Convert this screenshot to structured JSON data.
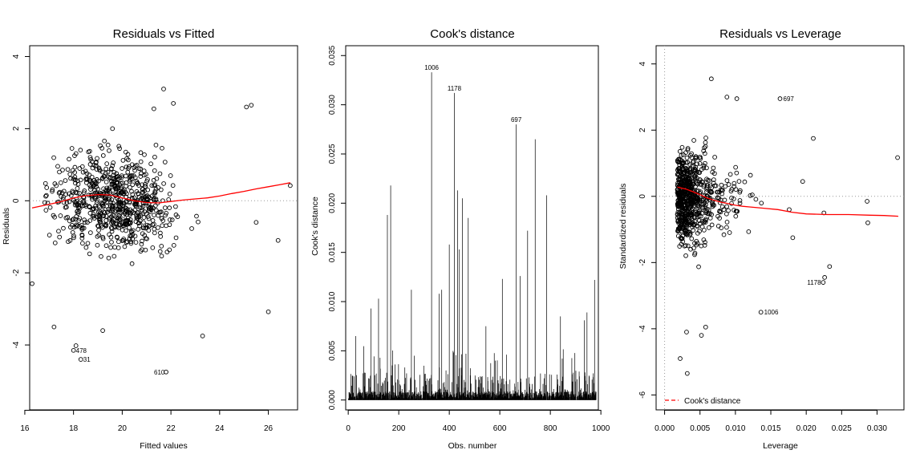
{
  "chart_data": [
    {
      "type": "scatter",
      "title": "Residuals vs Fitted",
      "xlabel": "Fitted values",
      "ylabel": "Residuals",
      "xlim": [
        16.2,
        27.2
      ],
      "ylim": [
        -5.8,
        4.3
      ],
      "x_ticks": [
        16,
        18,
        20,
        22,
        24,
        26
      ],
      "y_ticks": [
        -4,
        -2,
        0,
        2,
        4
      ],
      "reference_line": 0,
      "smooth_color": "#ff0000",
      "smooth": {
        "x": [
          16.3,
          17.0,
          17.5,
          18.0,
          18.5,
          19.0,
          19.5,
          20.0,
          20.5,
          21.0,
          21.5,
          22.0,
          22.5,
          23.0,
          23.5,
          24.0,
          24.5,
          25.0,
          25.5,
          26.0,
          26.5,
          26.9
        ],
        "y": [
          -0.2,
          -0.1,
          -0.02,
          0.08,
          0.14,
          0.17,
          0.16,
          0.08,
          0.0,
          -0.05,
          -0.06,
          -0.02,
          0.02,
          0.05,
          0.08,
          0.13,
          0.2,
          0.26,
          0.33,
          0.39,
          0.45,
          0.5
        ]
      },
      "labeled_points": [
        {
          "label": "478",
          "x": 18.0,
          "y": -4.15
        },
        {
          "label": "31",
          "x": 18.3,
          "y": -4.4
        },
        {
          "label": "610",
          "x": 21.8,
          "y": -4.75
        }
      ],
      "extra_points": [
        {
          "x": 18.1,
          "y": -4.02
        },
        {
          "x": 17.2,
          "y": -3.5
        },
        {
          "x": 19.2,
          "y": -3.6
        },
        {
          "x": 23.3,
          "y": -3.75
        },
        {
          "x": 21.7,
          "y": 3.1
        },
        {
          "x": 25.1,
          "y": 2.6
        },
        {
          "x": 25.3,
          "y": 2.65
        },
        {
          "x": 26.0,
          "y": -3.08
        },
        {
          "x": 26.9,
          "y": 0.42
        },
        {
          "x": 16.3,
          "y": -2.3
        },
        {
          "x": 22.1,
          "y": 2.7
        },
        {
          "x": 21.3,
          "y": 2.55
        },
        {
          "x": 19.6,
          "y": 2.0
        },
        {
          "x": 26.4,
          "y": -1.1
        },
        {
          "x": 25.5,
          "y": -0.6
        }
      ]
    },
    {
      "type": "bar",
      "title": "Cook's distance",
      "xlabel": "Obs. number",
      "ylabel": "Cook's distance",
      "xlim": [
        -10,
        990
      ],
      "ylim": [
        -0.001,
        0.036
      ],
      "x_ticks": [
        0,
        200,
        400,
        600,
        800,
        1000
      ],
      "y_ticks": [
        0.0,
        0.005,
        0.01,
        0.015,
        0.02,
        0.025,
        0.03,
        0.035
      ],
      "y_tick_labels": [
        "0.000",
        "0.005",
        "0.010",
        "0.015",
        "0.020",
        "0.025",
        "0.030",
        "0.035"
      ],
      "n_obs": 981,
      "highlighted": [
        {
          "label": "1006",
          "x": 330,
          "y": 0.0333
        },
        {
          "label": "1178",
          "x": 420,
          "y": 0.0312
        },
        {
          "label": "697",
          "x": 665,
          "y": 0.028
        }
      ],
      "large_values": [
        {
          "x": 168,
          "y": 0.0218
        },
        {
          "x": 155,
          "y": 0.0188
        },
        {
          "x": 740,
          "y": 0.0265
        },
        {
          "x": 433,
          "y": 0.0213
        },
        {
          "x": 452,
          "y": 0.0205
        },
        {
          "x": 475,
          "y": 0.0185
        },
        {
          "x": 785,
          "y": 0.0208
        },
        {
          "x": 710,
          "y": 0.0172
        },
        {
          "x": 440,
          "y": 0.0153
        },
        {
          "x": 400,
          "y": 0.0158
        },
        {
          "x": 370,
          "y": 0.0112
        },
        {
          "x": 250,
          "y": 0.0112
        },
        {
          "x": 360,
          "y": 0.0108
        },
        {
          "x": 90,
          "y": 0.0093
        },
        {
          "x": 120,
          "y": 0.0103
        },
        {
          "x": 610,
          "y": 0.0123
        },
        {
          "x": 680,
          "y": 0.0126
        },
        {
          "x": 975,
          "y": 0.0122
        },
        {
          "x": 945,
          "y": 0.0089
        },
        {
          "x": 935,
          "y": 0.0081
        },
        {
          "x": 840,
          "y": 0.0085
        },
        {
          "x": 545,
          "y": 0.0075
        },
        {
          "x": 30,
          "y": 0.0065
        }
      ]
    },
    {
      "type": "scatter",
      "title": "Residuals vs Leverage",
      "xlabel": "Leverage",
      "ylabel": "Standardized residuals",
      "xlim": [
        -0.0012,
        0.0338
      ],
      "ylim": [
        -6.45,
        4.55
      ],
      "x_ticks": [
        0.0,
        0.005,
        0.01,
        0.015,
        0.02,
        0.025,
        0.03
      ],
      "x_tick_labels": [
        "0.000",
        "0.005",
        "0.010",
        "0.015",
        "0.020",
        "0.025",
        "0.030"
      ],
      "y_ticks": [
        -6,
        -4,
        -2,
        0,
        2,
        4
      ],
      "reference_line": 0,
      "smooth_color": "#ff0000",
      "smooth": {
        "x": [
          0.0018,
          0.003,
          0.004,
          0.005,
          0.006,
          0.007,
          0.008,
          0.009,
          0.01,
          0.011,
          0.012,
          0.014,
          0.016,
          0.018,
          0.02,
          0.023,
          0.026,
          0.029,
          0.031,
          0.033
        ],
        "y": [
          0.28,
          0.22,
          0.14,
          0.05,
          -0.05,
          -0.12,
          -0.18,
          -0.22,
          -0.27,
          -0.3,
          -0.32,
          -0.36,
          -0.4,
          -0.48,
          -0.53,
          -0.55,
          -0.55,
          -0.57,
          -0.58,
          -0.6
        ]
      },
      "labeled_points": [
        {
          "label": "697",
          "x": 0.0163,
          "y": 2.95
        },
        {
          "label": "1178",
          "x": 0.0224,
          "y": -2.6
        },
        {
          "label": "1006",
          "x": 0.0136,
          "y": -3.5
        }
      ],
      "extra_points": [
        {
          "x": 0.0329,
          "y": 1.17
        },
        {
          "x": 0.0287,
          "y": -0.8
        },
        {
          "x": 0.0286,
          "y": -0.15
        },
        {
          "x": 0.0226,
          "y": -2.45
        },
        {
          "x": 0.0233,
          "y": -2.12
        },
        {
          "x": 0.021,
          "y": 1.75
        },
        {
          "x": 0.0195,
          "y": 0.45
        },
        {
          "x": 0.0181,
          "y": -1.25
        },
        {
          "x": 0.0176,
          "y": -0.4
        },
        {
          "x": 0.0225,
          "y": -0.5
        },
        {
          "x": 0.0032,
          "y": -5.35
        },
        {
          "x": 0.0022,
          "y": -4.9
        },
        {
          "x": 0.0031,
          "y": -4.1
        },
        {
          "x": 0.0052,
          "y": -4.2
        },
        {
          "x": 0.0058,
          "y": -3.95
        },
        {
          "x": 0.0066,
          "y": 3.55
        },
        {
          "x": 0.0088,
          "y": 3.0
        },
        {
          "x": 0.0102,
          "y": 2.95
        }
      ],
      "legend": {
        "label": "Cook's distance",
        "position": "bottom-left",
        "line_style": "dashed",
        "color": "#ff0000"
      }
    }
  ]
}
